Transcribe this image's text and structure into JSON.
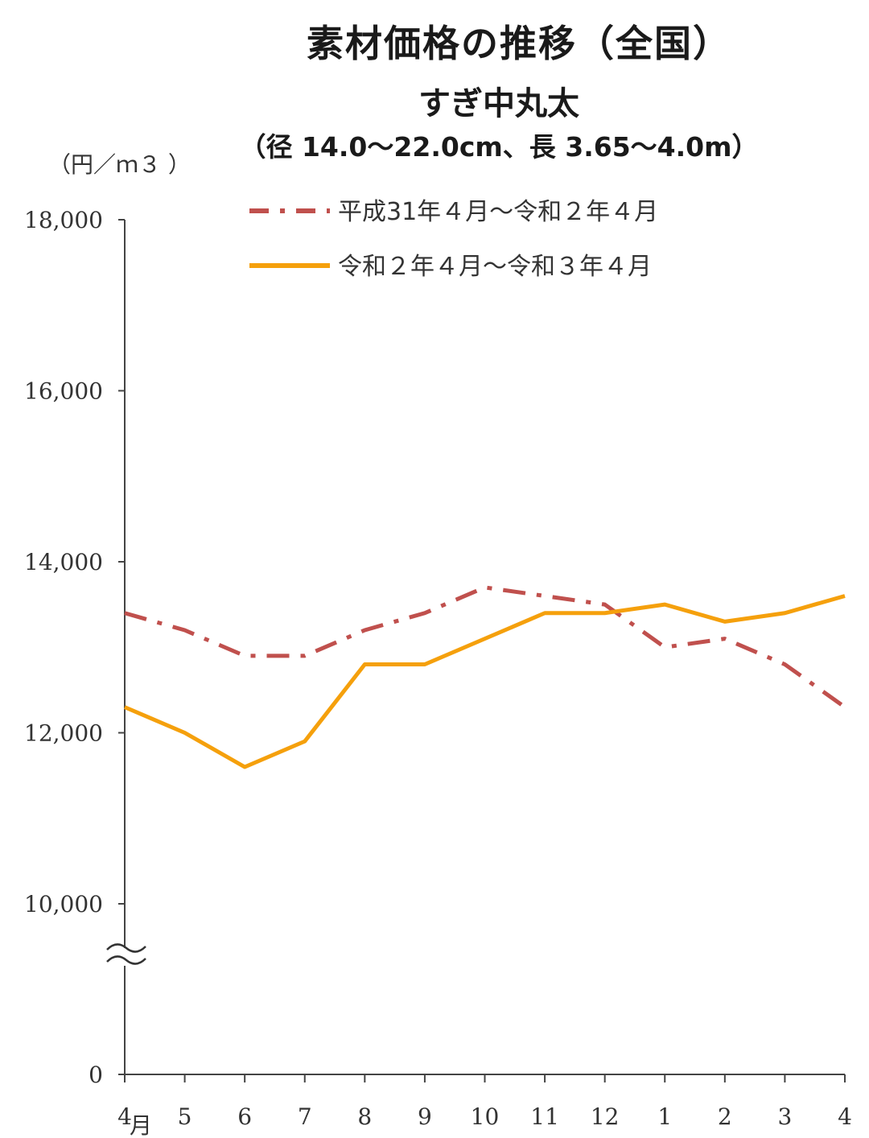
{
  "chart_data": {
    "type": "line",
    "title": "素材価格の推移（全国）",
    "subtitle": "すぎ中丸太",
    "subtitle2": "（径 14.0～22.0cm、長 3.65～4.0m）",
    "ylabel": "（円／ｍ３ ）",
    "ylim": [
      0,
      18000
    ],
    "axis_break": [
      0,
      10000
    ],
    "y_ticks": [
      0,
      10000,
      12000,
      14000,
      16000,
      18000
    ],
    "y_tick_labels": [
      "0",
      "10,000",
      "12,000",
      "14,000",
      "16,000",
      "18,000"
    ],
    "categories": [
      "4",
      "5",
      "6",
      "7",
      "8",
      "9",
      "10",
      "11",
      "12",
      "1",
      "2",
      "3",
      "4"
    ],
    "first_category_suffix": "月",
    "series": [
      {
        "name": "平成31年４月～令和２年４月",
        "color": "#c0504d",
        "style": "dash-dot",
        "values": [
          13400,
          13200,
          12900,
          12900,
          13200,
          13400,
          13700,
          13600,
          13500,
          13000,
          13100,
          12800,
          12300
        ]
      },
      {
        "name": "令和２年４月～令和３年４月",
        "color": "#f5a00c",
        "style": "solid",
        "values": [
          12300,
          12000,
          11600,
          11900,
          12800,
          12800,
          13100,
          13400,
          13400,
          13500,
          13300,
          13400,
          13600
        ]
      }
    ],
    "legend_position": "top-right"
  }
}
